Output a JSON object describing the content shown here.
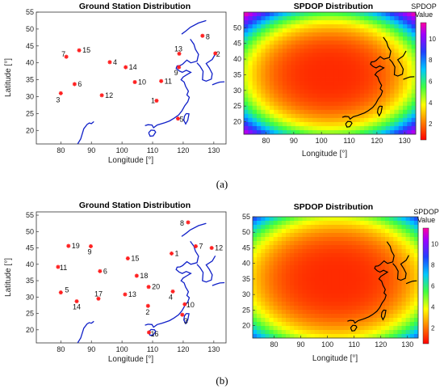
{
  "figure": {
    "caption_a": "(a)",
    "caption_b": "(b)"
  },
  "chart_data": [
    {
      "type": "scatter",
      "title": "Ground Station Distribution",
      "xlabel": "Longitude [°]",
      "ylabel": "Latitude [°]",
      "xlim": [
        72,
        134
      ],
      "ylim": [
        16,
        55
      ],
      "xticks": [
        80,
        90,
        100,
        110,
        120,
        130
      ],
      "yticks": [
        20,
        25,
        30,
        35,
        40,
        45,
        50,
        55
      ],
      "grid": false,
      "marker_color": "#ff2020",
      "points": [
        {
          "label": "1",
          "x": 111.3,
          "y": 28.8
        },
        {
          "label": "2",
          "x": 130.5,
          "y": 42.8
        },
        {
          "label": "3",
          "x": 80.0,
          "y": 31.0
        },
        {
          "label": "4",
          "x": 96.0,
          "y": 40.2
        },
        {
          "label": "5",
          "x": 118.3,
          "y": 23.5
        },
        {
          "label": "6",
          "x": 84.5,
          "y": 33.7
        },
        {
          "label": "7",
          "x": 81.8,
          "y": 41.8
        },
        {
          "label": "8",
          "x": 126.3,
          "y": 48.0
        },
        {
          "label": "9",
          "x": 118.6,
          "y": 38.7
        },
        {
          "label": "10",
          "x": 104.2,
          "y": 34.3
        },
        {
          "label": "11",
          "x": 112.8,
          "y": 34.6
        },
        {
          "label": "12",
          "x": 93.4,
          "y": 30.4
        },
        {
          "label": "13",
          "x": 118.7,
          "y": 42.7
        },
        {
          "label": "14",
          "x": 101.2,
          "y": 38.7
        },
        {
          "label": "15",
          "x": 86.0,
          "y": 43.7
        }
      ]
    },
    {
      "type": "heatmap",
      "title": "SPDOP Distribution",
      "xlabel": "Longitude [°]",
      "ylabel": "",
      "xlim": [
        72,
        134
      ],
      "ylim": [
        16,
        55
      ],
      "xticks": [
        80,
        90,
        100,
        110,
        120,
        130
      ],
      "yticks": [
        20,
        25,
        30,
        35,
        40,
        45,
        50
      ],
      "colorbar": {
        "title": [
          "SPDOP",
          "Value"
        ],
        "ticks": [
          2,
          4,
          6,
          8,
          10
        ],
        "range": [
          0.5,
          11.5
        ]
      },
      "min_value": 1.0,
      "max_value": 11.3,
      "min_location": [
        103,
        35
      ]
    },
    {
      "type": "scatter",
      "title": "Ground Station Distribution",
      "xlabel": "Longitude [°]",
      "ylabel": "Latitude [°]",
      "xlim": [
        72,
        134
      ],
      "ylim": [
        16,
        56
      ],
      "xticks": [
        80,
        90,
        100,
        110,
        120,
        130
      ],
      "yticks": [
        20,
        25,
        30,
        35,
        40,
        45,
        50,
        55
      ],
      "grid": false,
      "marker_color": "#ff2020",
      "points": [
        {
          "label": "1",
          "x": 116.2,
          "y": 43.3
        },
        {
          "label": "2",
          "x": 108.5,
          "y": 27.3
        },
        {
          "label": "3",
          "x": 119.7,
          "y": 24.6
        },
        {
          "label": "4",
          "x": 116.6,
          "y": 31.7
        },
        {
          "label": "5",
          "x": 80.0,
          "y": 31.4
        },
        {
          "label": "6",
          "x": 92.8,
          "y": 37.9
        },
        {
          "label": "7",
          "x": 124.1,
          "y": 45.5
        },
        {
          "label": "8",
          "x": 121.6,
          "y": 52.8
        },
        {
          "label": "9",
          "x": 89.8,
          "y": 45.5
        },
        {
          "label": "10",
          "x": 120.5,
          "y": 27.8
        },
        {
          "label": "11",
          "x": 79.1,
          "y": 39.2
        },
        {
          "label": "12",
          "x": 129.3,
          "y": 45.0
        },
        {
          "label": "13",
          "x": 101.0,
          "y": 30.8
        },
        {
          "label": "14",
          "x": 85.2,
          "y": 28.7
        },
        {
          "label": "15",
          "x": 101.9,
          "y": 41.8
        },
        {
          "label": "16",
          "x": 108.8,
          "y": 19.2
        },
        {
          "label": "17",
          "x": 92.3,
          "y": 29.5
        },
        {
          "label": "18",
          "x": 104.8,
          "y": 36.5
        },
        {
          "label": "19",
          "x": 82.5,
          "y": 45.6
        },
        {
          "label": "20",
          "x": 108.7,
          "y": 33.1
        }
      ]
    },
    {
      "type": "heatmap",
      "title": "SPDOP Distribution",
      "xlabel": "Longitude [°]",
      "ylabel": "",
      "xlim": [
        72,
        134
      ],
      "ylim": [
        16,
        55
      ],
      "xticks": [
        80,
        90,
        100,
        110,
        120,
        130
      ],
      "yticks": [
        20,
        25,
        30,
        35,
        40,
        45,
        50,
        55
      ],
      "colorbar": {
        "title": [
          "SPDOP",
          "Value"
        ],
        "ticks": [
          2,
          4,
          6,
          8,
          10
        ],
        "range": [
          0.5,
          11.5
        ]
      },
      "min_value": 1.0,
      "max_value": 8.0,
      "min_location": [
        103,
        35
      ]
    }
  ]
}
